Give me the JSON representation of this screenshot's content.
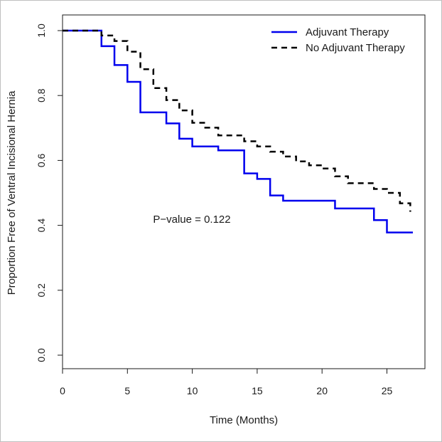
{
  "chart_data": {
    "type": "line",
    "title": "",
    "xlabel": "Time (Months)",
    "ylabel": "Proportion Free of Ventral Incisional Hernia",
    "xlim": [
      0,
      27
    ],
    "ylim": [
      0,
      1
    ],
    "xticks": [
      0,
      5,
      10,
      15,
      20,
      25
    ],
    "yticks": [
      0.0,
      0.2,
      0.4,
      0.6,
      0.8,
      1.0
    ],
    "xtick_labels": [
      "0",
      "5",
      "10",
      "15",
      "20",
      "25"
    ],
    "ytick_labels": [
      "0.0",
      "0.2",
      "0.4",
      "0.6",
      "0.8",
      "1.0"
    ],
    "grid": false,
    "legend_position": "top-right",
    "annotation": "P−value = 0.122",
    "series": [
      {
        "name": "Adjuvant Therapy",
        "color": "#0000ee",
        "linestyle": "solid",
        "step": true,
        "x": [
          0,
          3,
          4,
          5,
          6,
          8,
          9,
          10,
          12,
          14,
          15,
          16,
          17,
          21,
          24,
          25,
          27
        ],
        "y": [
          1.0,
          0.952,
          0.894,
          0.842,
          0.748,
          0.714,
          0.667,
          0.643,
          0.631,
          0.56,
          0.543,
          0.492,
          0.476,
          0.452,
          0.416,
          0.378,
          0.378
        ]
      },
      {
        "name": "No Adjuvant Therapy",
        "color": "#000000",
        "linestyle": "dashed",
        "step": true,
        "x": [
          0,
          3,
          4,
          5,
          6,
          7,
          8,
          9,
          10,
          11,
          12,
          14,
          15,
          16,
          17,
          18,
          19,
          20,
          21,
          22,
          24,
          25,
          26,
          26.8
        ],
        "y": [
          1.0,
          0.985,
          0.968,
          0.935,
          0.881,
          0.823,
          0.786,
          0.754,
          0.716,
          0.701,
          0.677,
          0.659,
          0.643,
          0.627,
          0.612,
          0.597,
          0.585,
          0.575,
          0.551,
          0.53,
          0.512,
          0.5,
          0.468,
          0.442
        ]
      }
    ]
  }
}
